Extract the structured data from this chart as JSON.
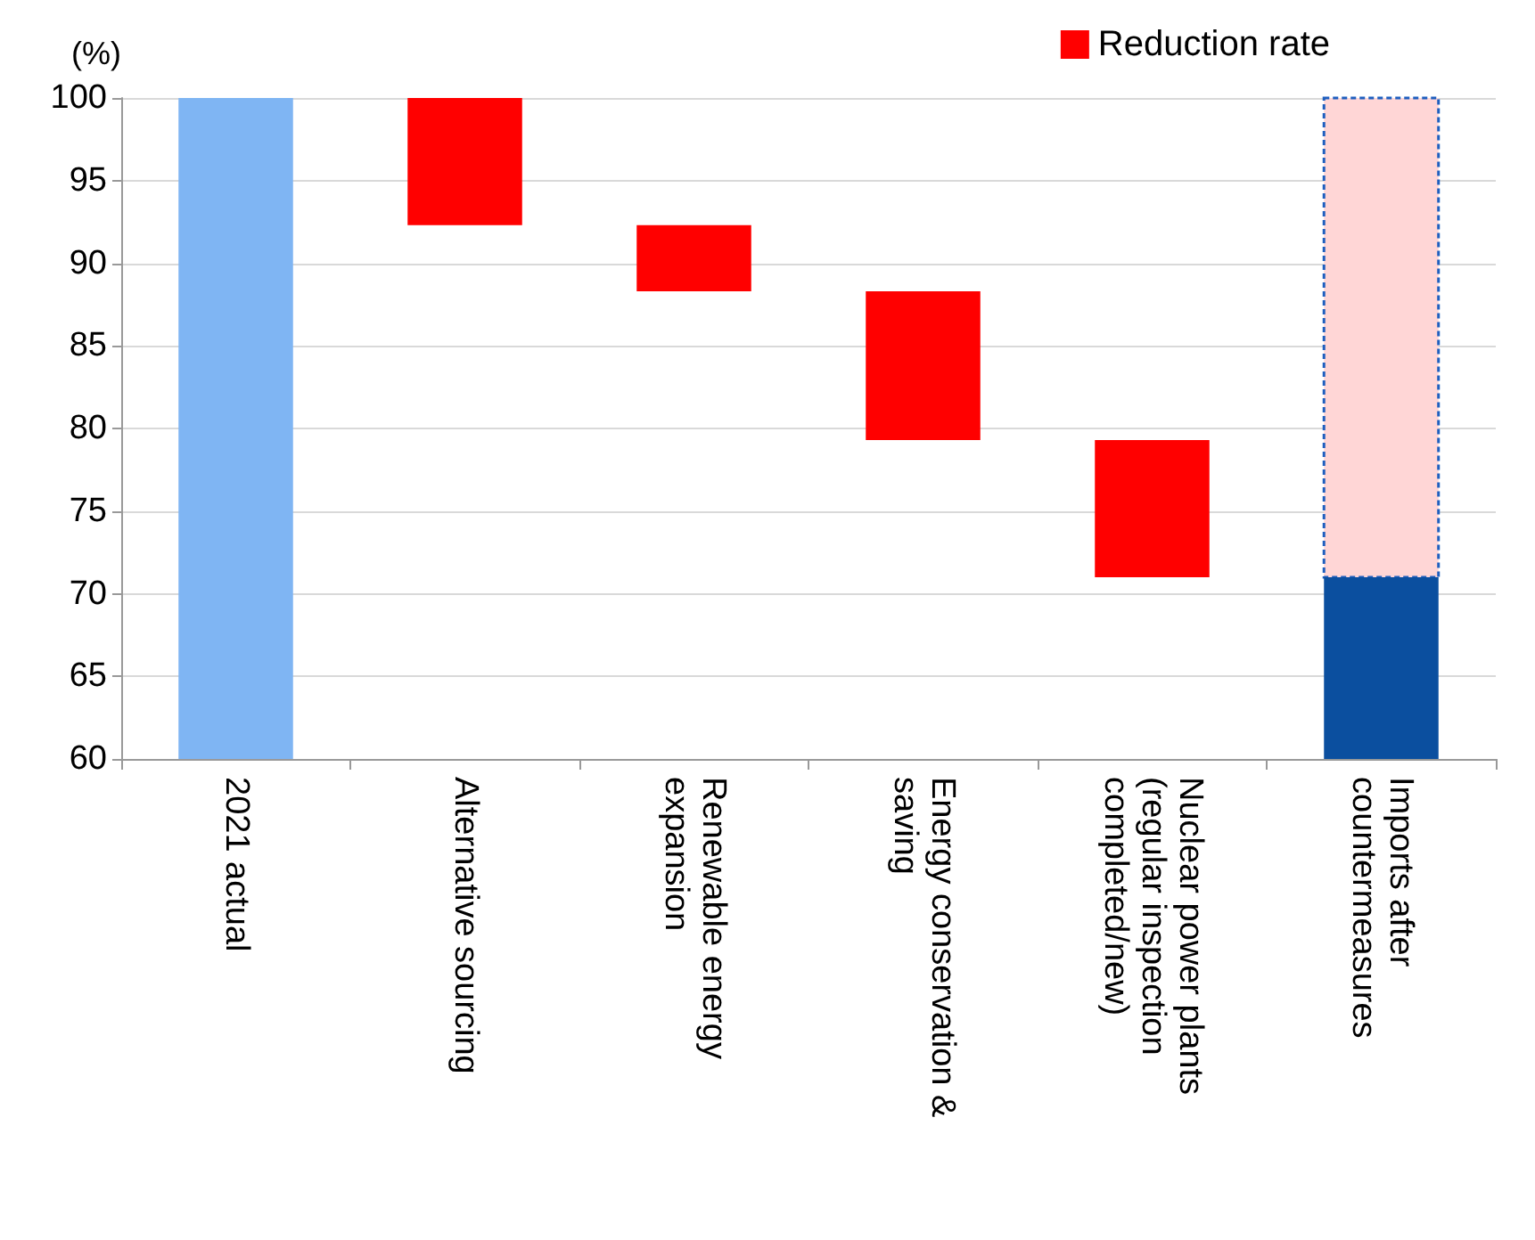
{
  "chart_data": {
    "type": "bar",
    "ylabel": "(%)",
    "categories": [
      "2021 actual",
      "Alternative sourcing",
      "Renewable energy expansion",
      "Energy conservation & saving",
      "Nuclear power plants (regular inspection completed/new)",
      "Imports after countermeasures"
    ],
    "series": [
      {
        "colors": [
          "#7fb5f3",
          null,
          null,
          null,
          null,
          "#0b4f9f"
        ],
        "values": [
          100,
          null,
          null,
          null,
          null,
          71
        ]
      },
      {
        "name": "Reduction rate",
        "color": "#ff0000",
        "colors": [
          null,
          "#ff0000",
          "#ff0000",
          "#ff0000",
          "#ff0000",
          "#ffd6d6"
        ],
        "base": [
          null,
          92.3,
          88.3,
          79.3,
          71,
          71
        ],
        "values": [
          null,
          7.7,
          4,
          9,
          8.3,
          29
        ]
      }
    ],
    "ylim": [
      60,
      100
    ],
    "yticks": [
      60,
      65,
      70,
      75,
      80,
      85,
      90,
      95,
      100
    ],
    "grid": "y",
    "legend": "top right"
  }
}
